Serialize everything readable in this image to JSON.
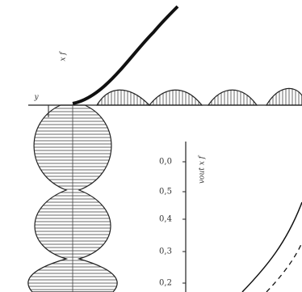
{
  "axis": {
    "ticks": [
      "0,0",
      "0,5",
      "0,4",
      "0,3",
      "0,2"
    ],
    "label": "vout x f"
  },
  "labels": {
    "top": "x f",
    "left": "y"
  }
}
